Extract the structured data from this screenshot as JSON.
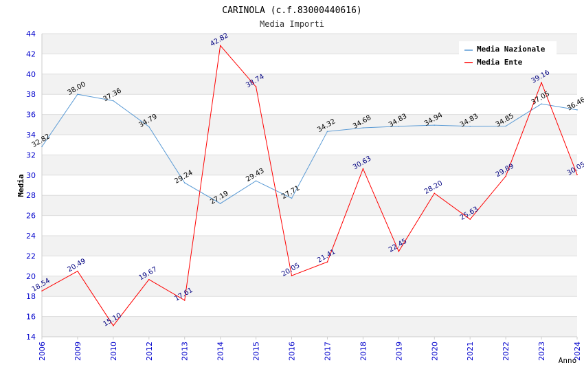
{
  "chart_data": {
    "type": "line",
    "title": "CARINOLA (c.f.83000440616)",
    "subtitle": "Media Importi",
    "xlabel": "Anno",
    "ylabel": "Media",
    "ylim": [
      14,
      44
    ],
    "ytick_step": 2,
    "ytick_labels": [
      "14",
      "16",
      "18",
      "20",
      "22",
      "24",
      "26",
      "28",
      "30",
      "32",
      "34",
      "36",
      "38",
      "40",
      "42",
      "44"
    ],
    "categories": [
      "2006",
      "2009",
      "2010",
      "2012",
      "2013",
      "2014",
      "2015",
      "2016",
      "2017",
      "2018",
      "2019",
      "2020",
      "2021",
      "2022",
      "2023",
      "2024"
    ],
    "series": [
      {
        "name": "Media Nazionale",
        "color": "#5b9bd5",
        "label_color": "#000000",
        "values": [
          32.82,
          38.0,
          37.36,
          34.79,
          29.24,
          27.19,
          29.43,
          27.71,
          34.32,
          34.68,
          34.83,
          34.94,
          34.83,
          34.85,
          37.05,
          36.46
        ],
        "labels": [
          "32.82",
          "38.00",
          "37.36",
          "34.79",
          "29.24",
          "27.19",
          "29.43",
          "27.71",
          "34.32",
          "34.68",
          "34.83",
          "34.94",
          "34.83",
          "34.85",
          "37.05",
          "36.46"
        ]
      },
      {
        "name": "Media Ente",
        "color": "#ff0000",
        "label_color": "#000080",
        "values": [
          18.54,
          20.49,
          15.1,
          19.67,
          17.61,
          42.82,
          38.74,
          20.05,
          21.41,
          30.63,
          22.45,
          28.2,
          25.63,
          29.89,
          39.16,
          30.05
        ],
        "labels": [
          "18.54",
          "20.49",
          "15.10",
          "19.67",
          "17.61",
          "42.82",
          "38.74",
          "20.05",
          "21.41",
          "30.63",
          "22.45",
          "28.20",
          "25.63",
          "29.89",
          "39.16",
          "30.05"
        ]
      }
    ],
    "legend_position": "top-right",
    "grid": "horizontal bands",
    "colors": {
      "band": "#f2f2f2",
      "gridline": "#dddddd",
      "axis": "#cccccc",
      "tick_label": "#0000cc",
      "title": "#000000",
      "subtitle": "#333333"
    }
  }
}
